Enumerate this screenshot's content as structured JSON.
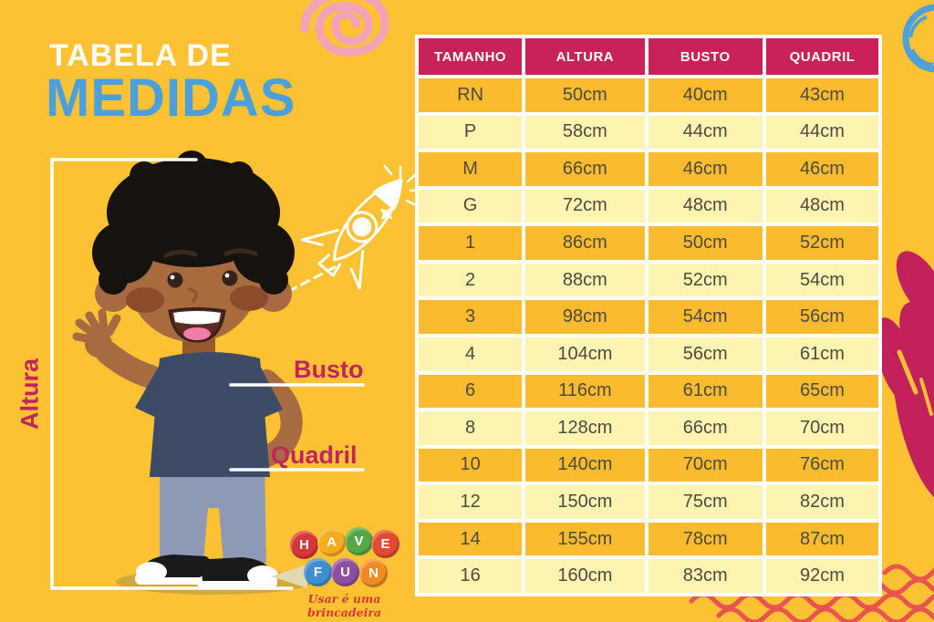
{
  "title": {
    "line1": "TABELA DE",
    "line2": "MEDIDAS"
  },
  "figure_labels": {
    "altura": "Altura",
    "busto": "Busto",
    "quadril": "Quadril"
  },
  "chart_data": {
    "type": "table",
    "title": "Tabela de Medidas",
    "headers": [
      "TAMANHO",
      "ALTURA",
      "BUSTO",
      "QUADRIL"
    ],
    "rows": [
      [
        "RN",
        "50cm",
        "40cm",
        "43cm"
      ],
      [
        "P",
        "58cm",
        "44cm",
        "44cm"
      ],
      [
        "M",
        "66cm",
        "46cm",
        "46cm"
      ],
      [
        "G",
        "72cm",
        "48cm",
        "48cm"
      ],
      [
        "1",
        "86cm",
        "50cm",
        "52cm"
      ],
      [
        "2",
        "88cm",
        "52cm",
        "54cm"
      ],
      [
        "3",
        "98cm",
        "54cm",
        "56cm"
      ],
      [
        "4",
        "104cm",
        "56cm",
        "61cm"
      ],
      [
        "6",
        "116cm",
        "61cm",
        "65cm"
      ],
      [
        "8",
        "128cm",
        "66cm",
        "70cm"
      ],
      [
        "10",
        "140cm",
        "70cm",
        "76cm"
      ],
      [
        "12",
        "150cm",
        "75cm",
        "82cm"
      ],
      [
        "14",
        "155cm",
        "78cm",
        "87cm"
      ],
      [
        "16",
        "160cm",
        "83cm",
        "92cm"
      ]
    ],
    "units": "cm"
  },
  "logo": {
    "letters": [
      "H",
      "A",
      "V",
      "E",
      "F",
      "U",
      "N"
    ],
    "tagline": "Usar é uma brincadeira"
  },
  "colors": {
    "background": "#FCC233",
    "table_header_bg": "#C9215A",
    "row_dark": "#FBBB2E",
    "row_light": "#FCF4B0",
    "cell_text": "#4C4A41",
    "title_white": "#FFFFFF",
    "title_blue": "#4BA0DC",
    "label_crimson": "#C2255C",
    "spiral_pink": "#F2A4B6",
    "scribble_blue": "#4FA0D8",
    "hand_magenta": "#C2215B",
    "wave_red": "#E85450",
    "boy_skin": "#A76B41",
    "boy_shirt": "#3D4B66",
    "boy_jeans": "#8E99B5",
    "ground_shadow": "#D2A73C",
    "logo_ball_colors": [
      "#D6373B",
      "#F6AC1D",
      "#58A746",
      "#E04B31",
      "#3E8ED0",
      "#8F4FA0",
      "#F18A21"
    ]
  },
  "decorations": [
    "pink-spiral",
    "blue-scribble-circle",
    "rocket-doodle",
    "magenta-hand",
    "red-waves"
  ]
}
